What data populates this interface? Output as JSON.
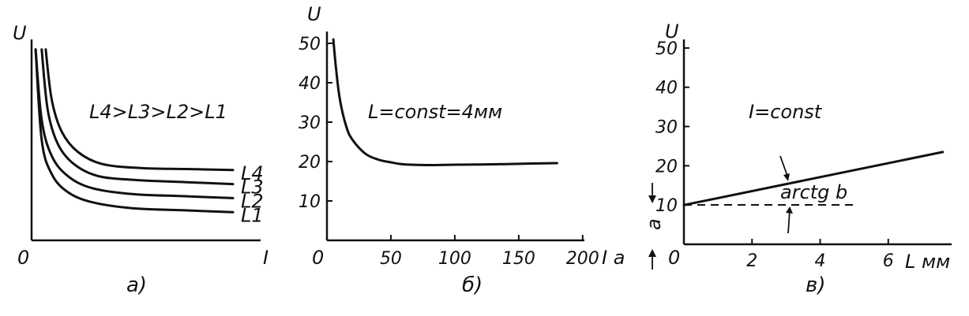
{
  "chart_data": [
    {
      "type": "line",
      "panel_label": "a)",
      "ylabel": "U",
      "xlabel": "I",
      "origin_label": "0",
      "annotation": "L4>L3>L2>L1",
      "series": [
        {
          "name": "L1",
          "x": [
            0.02,
            0.05,
            0.1,
            0.18,
            0.3,
            0.5,
            0.75,
            1.0
          ],
          "y": [
            0.95,
            0.5,
            0.33,
            0.24,
            0.19,
            0.16,
            0.15,
            0.14
          ]
        },
        {
          "name": "L2",
          "x": [
            0.02,
            0.05,
            0.1,
            0.18,
            0.3,
            0.5,
            0.75,
            1.0
          ],
          "y": [
            0.95,
            0.6,
            0.42,
            0.32,
            0.26,
            0.23,
            0.22,
            0.21
          ]
        },
        {
          "name": "L3",
          "x": [
            0.05,
            0.08,
            0.13,
            0.21,
            0.33,
            0.52,
            0.76,
            1.0
          ],
          "y": [
            0.95,
            0.65,
            0.48,
            0.38,
            0.32,
            0.3,
            0.29,
            0.28
          ]
        },
        {
          "name": "L4",
          "x": [
            0.07,
            0.1,
            0.15,
            0.23,
            0.35,
            0.54,
            0.77,
            1.0
          ],
          "y": [
            0.95,
            0.7,
            0.54,
            0.44,
            0.38,
            0.36,
            0.355,
            0.35
          ]
        }
      ]
    },
    {
      "type": "line",
      "panel_label": "б)",
      "ylabel": "U",
      "xlabel": "I a",
      "annotation": "L=const=4мм",
      "x_ticks": [
        "0",
        "50",
        "100",
        "150",
        "200"
      ],
      "y_ticks": [
        "10",
        "20",
        "30",
        "40",
        "50"
      ],
      "xlim": [
        0,
        210
      ],
      "ylim": [
        0,
        55
      ],
      "series": [
        {
          "name": "",
          "x": [
            5,
            7,
            10,
            15,
            20,
            30,
            40,
            50,
            60,
            80,
            100,
            130,
            160,
            180
          ],
          "y": [
            51,
            44,
            36,
            29,
            25.5,
            22,
            20.5,
            19.8,
            19.3,
            19.1,
            19.2,
            19.3,
            19.5,
            19.6
          ]
        }
      ]
    },
    {
      "type": "line",
      "panel_label": "в)",
      "ylabel": "U",
      "xlabel": "L мм",
      "annotation": "I=const",
      "slope_label": "arctg b",
      "intercept_label": "a",
      "origin_label": "0",
      "x_ticks": [
        "2",
        "4",
        "6"
      ],
      "y_ticks": [
        "10",
        "20",
        "30",
        "40",
        "50"
      ],
      "xlim": [
        0,
        8
      ],
      "ylim": [
        0,
        55
      ],
      "series": [
        {
          "name": "",
          "x": [
            0,
            7.6
          ],
          "y": [
            10,
            23.5
          ]
        }
      ]
    }
  ]
}
